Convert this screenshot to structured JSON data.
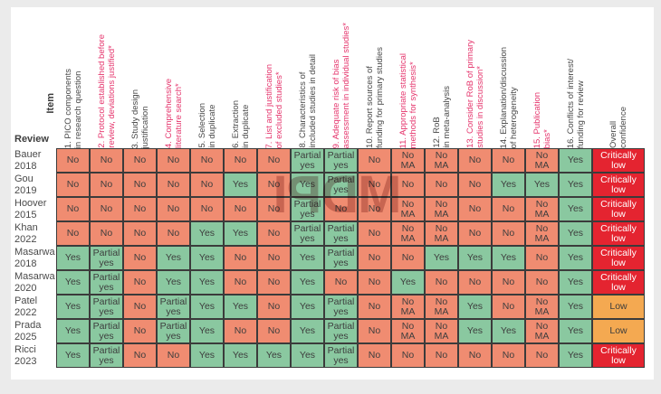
{
  "colors": {
    "yes_fill": "#8AC8A0",
    "no_fill": "#F08C71",
    "critically_low_fill": "#E42430",
    "low_fill": "#F4A951",
    "critical_item_text": "#E5336B"
  },
  "watermark": {
    "text": "MDPI"
  },
  "chart_data": {
    "type": "table",
    "corner": {
      "item_label": "Item",
      "review_label": "Review"
    },
    "columns": [
      {
        "label": "1. PICO components\nin research question",
        "critical": false
      },
      {
        "label": "2. Protocol established before\nreview, deviations justified*",
        "critical": true
      },
      {
        "label": "3. Study design\njustification",
        "critical": false
      },
      {
        "label": "4. Comprehensive\nliterature search*",
        "critical": true
      },
      {
        "label": "5. Selection\nin duplicate",
        "critical": false
      },
      {
        "label": "6. Extraction\nin duplicate",
        "critical": false
      },
      {
        "label": "7. List and justification\nof excluded studies*",
        "critical": true
      },
      {
        "label": "8. Characteristics of\nincluded studies in detail",
        "critical": false
      },
      {
        "label": "9. Adequate risk of bias\nassessment in individual studies*",
        "critical": true
      },
      {
        "label": "10. Report sources of\nfunding for primary studies",
        "critical": false
      },
      {
        "label": "11. Appropriate statistical\nmethods for synthesis*",
        "critical": true
      },
      {
        "label": "12. RoB\nin meta-analysis",
        "critical": false
      },
      {
        "label": "13. Consider RoB of primary\nstudies in discussion*",
        "critical": true
      },
      {
        "label": "14. Explanation/discussion\nof heterogeneity",
        "critical": false
      },
      {
        "label": "15. Publication\nbias*",
        "critical": true
      },
      {
        "label": "16. Conflicts of interest/\nfunding for review",
        "critical": false
      },
      {
        "label": "Overall\nconfidence",
        "critical": false
      }
    ],
    "rows": [
      {
        "review": "Bauer 2018",
        "values": [
          "No",
          "No",
          "No",
          "No",
          "No",
          "No",
          "No",
          "Partial yes",
          "Partial yes",
          "No",
          "No MA",
          "No MA",
          "No",
          "No",
          "No MA",
          "Yes"
        ],
        "overall": "Critically low"
      },
      {
        "review": "Gou 2019",
        "values": [
          "No",
          "No",
          "No",
          "No",
          "No",
          "Yes",
          "No",
          "Yes",
          "Partial yes",
          "No",
          "No",
          "No",
          "No",
          "Yes",
          "Yes",
          "Yes"
        ],
        "overall": "Critically low"
      },
      {
        "review": "Hoover 2015",
        "values": [
          "No",
          "No",
          "No",
          "No",
          "No",
          "No",
          "No",
          "Partial yes",
          "No",
          "No",
          "No MA",
          "No MA",
          "No",
          "No",
          "No MA",
          "Yes"
        ],
        "overall": "Critically low"
      },
      {
        "review": "Khan 2022",
        "values": [
          "No",
          "No",
          "No",
          "No",
          "Yes",
          "Yes",
          "No",
          "Partial yes",
          "Partial yes",
          "No",
          "No MA",
          "No MA",
          "No",
          "No",
          "No MA",
          "Yes"
        ],
        "overall": "Critically low"
      },
      {
        "review": "Masarwa 2018",
        "values": [
          "Yes",
          "Partial yes",
          "No",
          "Yes",
          "Yes",
          "No",
          "No",
          "Yes",
          "Partial yes",
          "No",
          "No",
          "Yes",
          "Yes",
          "Yes",
          "No",
          "Yes"
        ],
        "overall": "Critically low"
      },
      {
        "review": "Masarwa 2020",
        "values": [
          "Yes",
          "Partial yes",
          "No",
          "Yes",
          "Yes",
          "No",
          "No",
          "Yes",
          "No",
          "No",
          "Yes",
          "No",
          "No",
          "No",
          "No",
          "Yes"
        ],
        "overall": "Critically low"
      },
      {
        "review": "Patel 2022",
        "values": [
          "Yes",
          "Partial yes",
          "No",
          "Partial yes",
          "Yes",
          "Yes",
          "No",
          "Yes",
          "Partial yes",
          "No",
          "No MA",
          "No MA",
          "Yes",
          "No",
          "No MA",
          "Yes"
        ],
        "overall": "Low"
      },
      {
        "review": "Prada 2025",
        "values": [
          "Yes",
          "Partial yes",
          "No",
          "Partial yes",
          "Yes",
          "No",
          "No",
          "Yes",
          "Partial yes",
          "No",
          "No MA",
          "No MA",
          "Yes",
          "Yes",
          "No MA",
          "Yes"
        ],
        "overall": "Low"
      },
      {
        "review": "Ricci 2023",
        "values": [
          "Yes",
          "Partial yes",
          "No",
          "No",
          "Yes",
          "Yes",
          "Yes",
          "Yes",
          "Partial yes",
          "No",
          "No",
          "No",
          "No",
          "No",
          "No",
          "Yes"
        ],
        "overall": "Critically low"
      }
    ]
  }
}
